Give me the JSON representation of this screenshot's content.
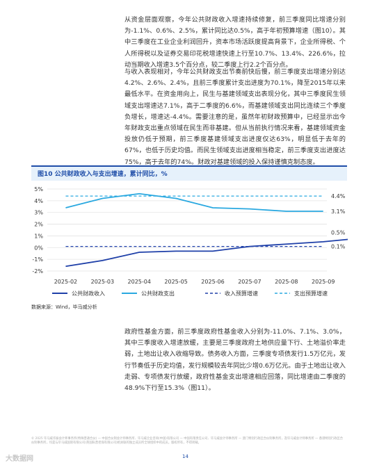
{
  "paragraphs": {
    "p1": "从资金层面观察，今年公共财政收入增速持续修复，前三季度同比增速分别为-1.1%、0.6%、2.5%，累计同比达0.5%，高于年初预算增速（图10）。其中三季度在工业企业利润回升，资本市场活跃度提高背景下，企业所得税、个人所得税以及证券交易印花税增速快速上行至10.7%、13.4%、226.6%，拉动当期收入增速3.5个百分点，较二季度上行2.2个百分点。",
    "p2": "与收入表现相对，今年公共财政支出节奏前快后慢，前三季度支出增速分别达4.2%、2.6%、2.4%，且前三季度累计支出进度为70.1%，降至2015年以来最低水平。在资金用向上，民生与基建领域支出表现分化，其中三季度民生领域支出增速达7.1%，高于二季度的6.6%，而基建领域支出同比连续三个季度负增长，增速达-4.4%。需要注意的是，虽然年初财政预算中，已经显示出今年财政支出重点领域在民生而非基建。但从当前执行情况来看，基建领域资金投放仍低于预期，前三季度基建领域支出进度仅达63%，明显低于去年的67%，也低于历史均值。而民生领域支出进度相当稳定，前三季度支出进度达75%，高于去年的74%。财政对基建领域的投入保持谨慎克制态度。",
    "p3": "政府性基金方面，前三季度政府性基金收入分别为-11.0%、7.1%、3.0%，其中三季度收入增速放缓，主要是三季度政府土地供应量下行、土地溢价率走弱，土地出让收入收缩导致。债务收入方面，三季度专项债发行1.5万亿元，发行节奏低于历史均值，发行规模较去年同比少增0.6万亿元。由于土地出让收入走弱、专项债发行放缓，政府性基金支出增速相应回落，同比增速由二季度的48.9%下行至15.3%（图11）。"
  },
  "figure": {
    "title": "图10 公共财政收入与支出增速，累计同比，%",
    "source": "数据来源：Wind，毕马威分析"
  },
  "chart_data": {
    "type": "line",
    "x": [
      "2025-02",
      "2025-03",
      "2025-04",
      "2025-05",
      "2025-06",
      "2025-07",
      "2025-08",
      "2025-09"
    ],
    "ylim": [
      -2,
      5
    ],
    "yticks": [
      "-2%",
      "-1%",
      "0%",
      "1%",
      "2%",
      "3%",
      "4%",
      "5%"
    ],
    "ytick_values": [
      -2,
      -1,
      0,
      1,
      2,
      3,
      4,
      5
    ],
    "grid": "horizontal",
    "legend_position": "bottom",
    "series": [
      {
        "name": "公共财政收入",
        "style": "solid",
        "color": "#1e3fa8",
        "values": [
          -1.6,
          -1.1,
          -0.4,
          -0.3,
          -0.3,
          0.1,
          0.3,
          0.5
        ],
        "end_label": "0.5%",
        "extra_point": [
          8.0,
          0.8
        ]
      },
      {
        "name": "公共财政支出",
        "style": "solid",
        "color": "#29a8e0",
        "values": [
          3.4,
          4.2,
          4.6,
          4.2,
          3.4,
          3.3,
          3.1,
          3.1
        ],
        "end_label": "3.1%"
      },
      {
        "name": "收入预算增速",
        "style": "dashed",
        "color": "#1e3fa8",
        "values": [
          0.1,
          0.1,
          0.1,
          0.1,
          0.1,
          0.1,
          0.1,
          0.1
        ],
        "end_label": "0.1%"
      },
      {
        "name": "支出预算增速",
        "style": "dashed",
        "color": "#29a8e0",
        "values": [
          4.4,
          4.4,
          4.4,
          4.4,
          4.4,
          4.4,
          4.4,
          4.4
        ],
        "end_label": "4.4%"
      }
    ]
  },
  "footer": {
    "disclaimer": "© 2025 毕马威华振会计师事务所(特殊普通合伙) — 中国合伙制会计师事务所、毕马威企业咨询(中国)有限公司 — 中国有限责任公司、毕马威会计师事务所 — 澳门特别行政区合伙制事务所，及毕马威会计师事务所 — 香港特别行政区合伙制事务所，均是与毕马威国际有限公司(英国私营担保有限公司)相关联的独立成员所全球组织中的成员。版权所有，不得转载。",
    "page_number": "14",
    "watermark": "大数据网"
  }
}
